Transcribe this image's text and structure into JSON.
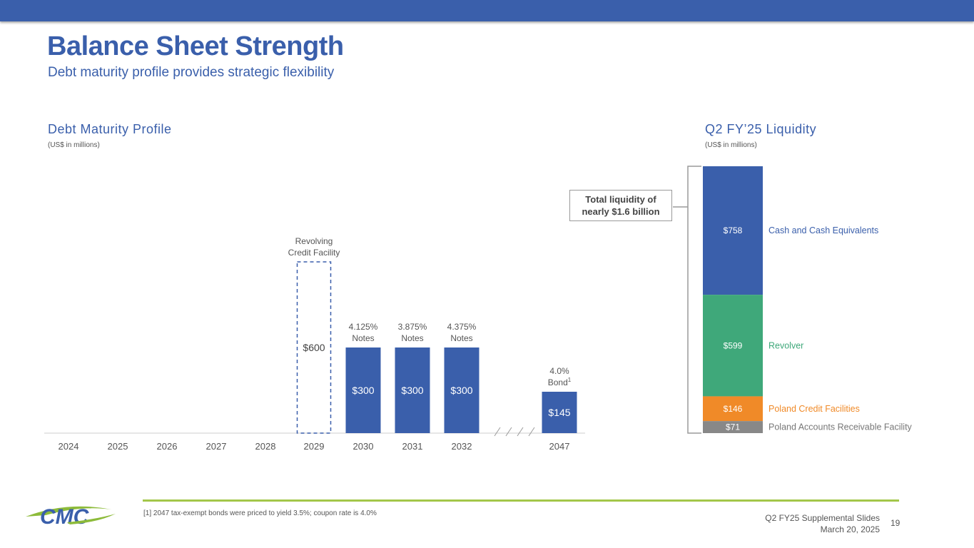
{
  "header": {
    "title": "Balance Sheet Strength",
    "subtitle": "Debt maturity profile provides strategic flexibility"
  },
  "brand": {
    "accent": "#3a5fab",
    "green": "#3fa87a",
    "orange": "#f08a28",
    "gray": "#888888",
    "rule": "#a3c74a",
    "logo_text": "CMC"
  },
  "chart_data": [
    {
      "type": "bar",
      "title": "Debt Maturity Profile",
      "units": "(US$ in millions)",
      "categories": [
        "2024",
        "2025",
        "2026",
        "2027",
        "2028",
        "2029",
        "2030",
        "2031",
        "2032",
        "2047"
      ],
      "values": [
        0,
        0,
        0,
        0,
        0,
        600,
        300,
        300,
        300,
        145
      ],
      "value_labels": [
        "",
        "",
        "",
        "",
        "",
        "$600",
        "$300",
        "$300",
        "$300",
        "$145"
      ],
      "bar_labels": [
        {
          "category": "2029",
          "line1": "Revolving",
          "line2": "Credit Facility",
          "style": "dashed-outline"
        },
        {
          "category": "2030",
          "line1": "4.125%",
          "line2": "Notes"
        },
        {
          "category": "2031",
          "line1": "3.875%",
          "line2": "Notes"
        },
        {
          "category": "2032",
          "line1": "4.375%",
          "line2": "Notes"
        },
        {
          "category": "2047",
          "line1": "4.0%",
          "line2": "Bond",
          "superscript": "1"
        }
      ],
      "axis_break_between": [
        "2032",
        "2047"
      ]
    },
    {
      "type": "stacked-bar",
      "title": "Q2 FY’25 Liquidity",
      "units": "(US$ in millions)",
      "segments": [
        {
          "name": "Cash and Cash Equivalents",
          "value": 758,
          "label": "$758",
          "color": "#3a5fab"
        },
        {
          "name": "Revolver",
          "value": 599,
          "label": "$599",
          "color": "#3fa87a"
        },
        {
          "name": "Poland Credit Facilities",
          "value": 146,
          "label": "$146",
          "color": "#f08a28"
        },
        {
          "name": "Poland Accounts Receivable Facility",
          "value": 71,
          "label": "$71",
          "color": "#888888"
        }
      ],
      "callout": {
        "line1": "Total liquidity of",
        "line2": "nearly $1.6 billion"
      }
    }
  ],
  "footer": {
    "footnote": "[1] 2047 tax-exempt bonds were priced to yield 3.5%; coupon rate is 4.0%",
    "deck_name": "Q2 FY25 Supplemental Slides",
    "date": "March 20, 2025",
    "page": "19"
  }
}
